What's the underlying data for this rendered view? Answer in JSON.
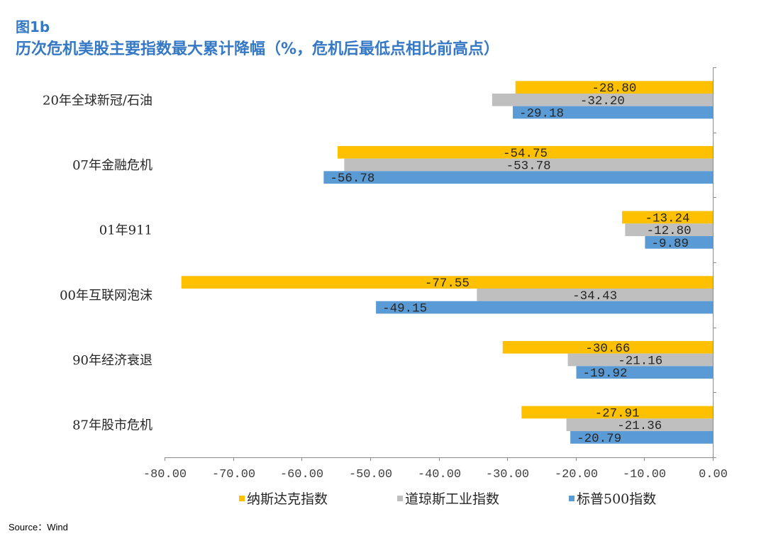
{
  "chart_data": {
    "type": "bar",
    "orientation": "horizontal",
    "figure_label": "图1b",
    "title": "历次危机美股主要指数最大累计降幅（%，危机后最低点相比前高点）",
    "title_color": "#3478C6",
    "categories": [
      "20年全球新冠/石油",
      "07年金融危机",
      "01年911",
      "00年互联网泡沫",
      "90年经济衰退",
      "87年股市危机"
    ],
    "series": [
      {
        "name": "纳斯达克指数",
        "color": "#FFC000",
        "values": [
          -28.8,
          -54.75,
          -13.24,
          -77.55,
          -30.66,
          -27.91
        ],
        "labels": [
          "-28.80",
          "-54.75",
          "-13.24",
          "-77.55",
          "-30.66",
          "-27.91"
        ]
      },
      {
        "name": "道琼斯工业指数",
        "color": "#BFBFBF",
        "values": [
          -32.2,
          -53.78,
          -12.8,
          -34.43,
          -21.16,
          -21.36
        ],
        "labels": [
          "-32.20",
          "-53.78",
          "-12.80",
          "-34.43",
          "-21.16",
          "-21.36"
        ]
      },
      {
        "name": "标普500指数",
        "color": "#5B9BD5",
        "values": [
          -29.18,
          -56.78,
          -9.89,
          -49.15,
          -19.92,
          -20.79
        ],
        "labels": [
          "-29.18",
          "-56.78",
          "-9.89",
          "-49.15",
          "-19.92",
          "-20.79"
        ]
      }
    ],
    "xlim": [
      -80,
      0
    ],
    "xticks": [
      "-80.00",
      "-70.00",
      "-60.00",
      "-50.00",
      "-40.00",
      "-30.00",
      "-20.00",
      "-10.00",
      "0.00"
    ],
    "grid": false,
    "legend": "bottom"
  },
  "footer": {
    "source": "Source：Wind"
  }
}
